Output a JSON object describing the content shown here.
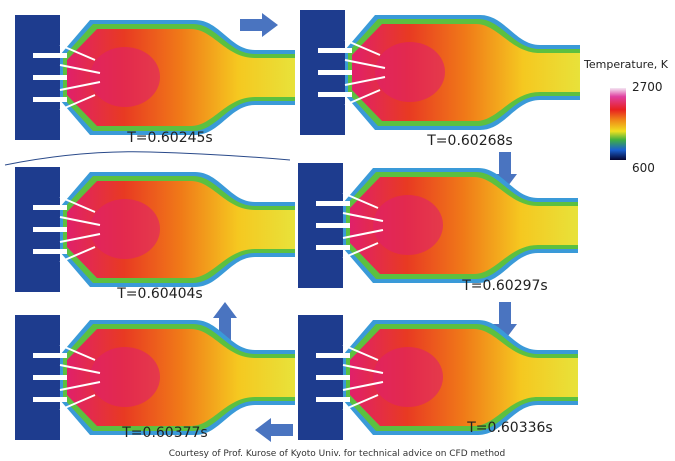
{
  "panels": [
    {
      "label": "T=0.60245s"
    },
    {
      "label": "T=0.60268s"
    },
    {
      "label": "T=0.60404s"
    },
    {
      "label": "T=0.60297s"
    },
    {
      "label": "T=0.60377s"
    },
    {
      "label": "T=0.60336s"
    }
  ],
  "colorbar": {
    "title": "Temperature, K",
    "max": "2700",
    "min": "600"
  },
  "credit": "Courtesy of Prof. Kurose of Kyoto Univ.  for technical advice on CFD method"
}
